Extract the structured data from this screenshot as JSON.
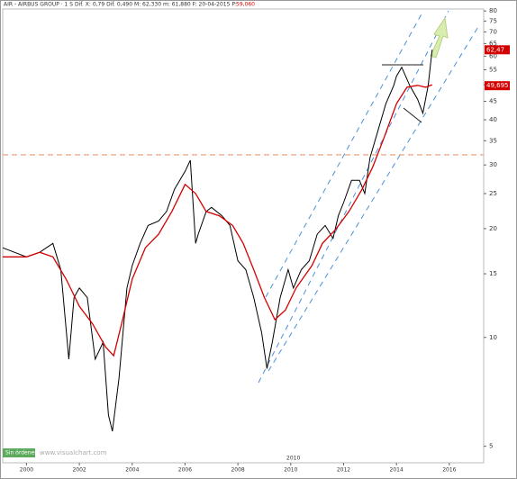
{
  "chart_data": {
    "type": "line",
    "title": "AIR - AIRBUS GROUP · 1 S Dif.  X: 0,79 Dif.  0,490 M: 62,330 m: 61,880 F: 20-04-2015 P:",
    "title_value": "59,060",
    "watermark": "www.visualchart.com",
    "status": "Sin órdenes",
    "bottom_note": "2010",
    "yscale": "log",
    "xlim": [
      1999.1,
      2017.3
    ],
    "ylim": [
      4.5,
      81
    ],
    "xticks": [
      2000,
      2002,
      2004,
      2006,
      2008,
      2010,
      2012,
      2014,
      2016
    ],
    "yticks": [
      80,
      75,
      70,
      65,
      60,
      55,
      50,
      45,
      40,
      35,
      30,
      25,
      20,
      15,
      10,
      5
    ],
    "hline": {
      "value": 32,
      "color": "#e89a70"
    },
    "price_labels": [
      {
        "value": 62.47,
        "label": "62,47"
      },
      {
        "value": 49.695,
        "label": "49,695"
      }
    ],
    "series": [
      {
        "color": "#000000",
        "x": [
          1999.1,
          2000.0,
          2000.5,
          2001.0,
          2001.3,
          2001.6,
          2001.8,
          2002.0,
          2002.3,
          2002.6,
          2002.9,
          2003.1,
          2003.25,
          2003.5,
          2003.8,
          2004.0,
          2004.3,
          2004.6,
          2005.0,
          2005.3,
          2005.6,
          2006.0,
          2006.2,
          2006.4,
          2006.5,
          2006.8,
          2007.0,
          2007.4,
          2007.7,
          2008.0,
          2008.3,
          2008.6,
          2008.9,
          2009.1,
          2009.3,
          2009.6,
          2009.9,
          2010.1,
          2010.4,
          2010.7,
          2011.0,
          2011.3,
          2011.6,
          2011.8,
          2012.0,
          2012.3,
          2012.6,
          2012.8,
          2013.0,
          2013.3,
          2013.6,
          2013.9,
          2014.0,
          2014.2,
          2014.5,
          2014.8,
          2015.0,
          2015.2,
          2015.35
        ],
        "values": [
          17.7,
          16.7,
          17.2,
          18.2,
          15.4,
          8.7,
          12.9,
          13.7,
          12.9,
          8.7,
          9.7,
          6.1,
          5.5,
          7.7,
          13.7,
          15.8,
          18.2,
          20.4,
          21,
          22.3,
          25.7,
          28.8,
          30.9,
          18.2,
          19.3,
          22.3,
          22.9,
          21.7,
          20.4,
          16.3,
          15.4,
          12.9,
          10.3,
          8.2,
          9.7,
          12.9,
          15.4,
          13.7,
          15.4,
          16.3,
          19.3,
          20.4,
          18.8,
          21.7,
          23.6,
          27.2,
          27.2,
          25,
          31.4,
          37.3,
          44.3,
          49.8,
          52.8,
          55.9,
          49.8,
          45.6,
          41.7,
          49.8,
          62.5
        ]
      },
      {
        "color": "#d40000",
        "x": [
          1999.1,
          2000.0,
          2000.5,
          2001.0,
          2001.5,
          2002.0,
          2002.5,
          2003.0,
          2003.3,
          2003.6,
          2004.0,
          2004.5,
          2005.0,
          2005.5,
          2006.0,
          2006.4,
          2006.8,
          2007.3,
          2007.8,
          2008.2,
          2008.6,
          2009.0,
          2009.4,
          2009.8,
          2010.2,
          2010.8,
          2011.2,
          2011.7,
          2012.2,
          2012.7,
          2013.1,
          2013.5,
          2014.0,
          2014.4,
          2014.8,
          2015.1,
          2015.35
        ],
        "values": [
          16.7,
          16.7,
          17.2,
          16.7,
          14.5,
          12.2,
          10.9,
          9.4,
          8.9,
          10.9,
          14.5,
          17.7,
          19.3,
          22.3,
          26.5,
          25,
          22.3,
          21.7,
          20.4,
          18.2,
          15.4,
          12.9,
          11.2,
          11.9,
          13.7,
          15.8,
          18.2,
          19.9,
          22.3,
          25.7,
          29.6,
          35.2,
          44.3,
          49.2,
          49.8,
          49.2,
          50
        ]
      }
    ]
  }
}
